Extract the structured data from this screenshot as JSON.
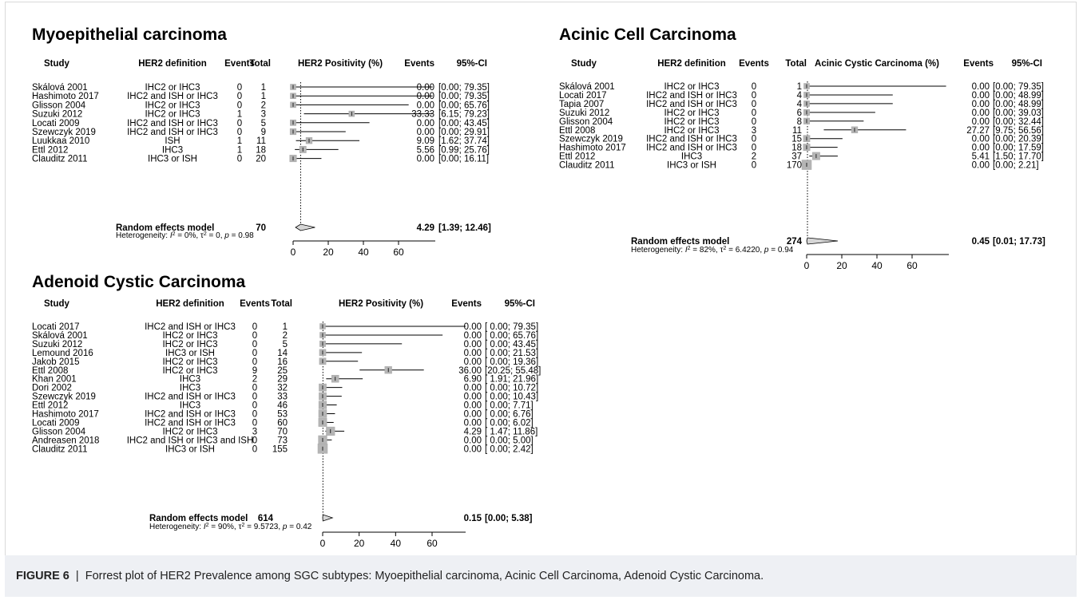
{
  "caption": {
    "label": "FIGURE 6",
    "sep": "|",
    "text": "Forrest plot of HER2 Prevalence among SGC subtypes: Myoepithelial carcinoma, Acinic Cell Carcinoma, Adenoid Cystic Carcinoma."
  },
  "chart_data": [
    {
      "type": "forest",
      "title": "Myoepithelial carcinoma",
      "headers": {
        "study": "Study",
        "definition": "HER2 definition",
        "events": "Events",
        "total": "Total",
        "plot": "HER2 Positivity (%)",
        "events_pct": "Events",
        "ci": "95%-CI"
      },
      "xlim": [
        0,
        60
      ],
      "ticks": [
        "0",
        "20",
        "40",
        "60"
      ],
      "rows": [
        {
          "study": "Skálová 2001",
          "definition": "IHC2 or IHC3",
          "events": "0",
          "total": "1",
          "est": 0.0,
          "lo": 0.0,
          "hi": 79.35,
          "est_text": "0.00",
          "ci_text": "[0.00; 79.35]"
        },
        {
          "study": "Hashimoto 2017",
          "definition": "IHC2 and ISH or IHC3",
          "events": "0",
          "total": "1",
          "est": 0.0,
          "lo": 0.0,
          "hi": 79.35,
          "est_text": "0.00",
          "ci_text": "[0.00; 79.35]"
        },
        {
          "study": "Glisson 2004",
          "definition": "IHC2 or IHC3",
          "events": "0",
          "total": "2",
          "est": 0.0,
          "lo": 0.0,
          "hi": 65.76,
          "est_text": "0.00",
          "ci_text": "[0.00; 65.76]"
        },
        {
          "study": "Suzuki 2012",
          "definition": "IHC2 or IHC3",
          "events": "1",
          "total": "3",
          "est": 33.33,
          "lo": 6.15,
          "hi": 79.23,
          "est_text": "33.33",
          "ci_text": "[6.15; 79.23]"
        },
        {
          "study": "Locati 2009",
          "definition": "IHC2 and ISH or IHC3",
          "events": "0",
          "total": "5",
          "est": 0.0,
          "lo": 0.0,
          "hi": 43.45,
          "est_text": "0.00",
          "ci_text": "[0.00; 43.45]"
        },
        {
          "study": "Szewczyk 2019",
          "definition": "IHC2 and ISH or IHC3",
          "events": "0",
          "total": "9",
          "est": 0.0,
          "lo": 0.0,
          "hi": 29.91,
          "est_text": "0.00",
          "ci_text": "[0.00; 29.91]"
        },
        {
          "study": "Luukkaa 2010",
          "definition": "ISH",
          "events": "1",
          "total": "11",
          "est": 9.09,
          "lo": 1.62,
          "hi": 37.74,
          "est_text": "9.09",
          "ci_text": "[1.62; 37.74]"
        },
        {
          "study": "Ettl 2012",
          "definition": "IHC3",
          "events": "1",
          "total": "18",
          "est": 5.56,
          "lo": 0.99,
          "hi": 25.76,
          "est_text": "5.56",
          "ci_text": "[0.99; 25.76]"
        },
        {
          "study": "Clauditz 2011",
          "definition": "IHC3 or ISH",
          "events": "0",
          "total": "20",
          "est": 0.0,
          "lo": 0.0,
          "hi": 16.11,
          "est_text": "0.00",
          "ci_text": "[0.00; 16.11]"
        }
      ],
      "summary": {
        "label": "Random effects model",
        "total": "70",
        "est": 4.29,
        "lo": 1.39,
        "hi": 12.46,
        "est_text": "4.29",
        "ci_text": "[1.39; 12.46]"
      },
      "heterogeneity": {
        "prefix": "Heterogeneity: ",
        "i2_sym": "I",
        "i2_val": " = 0%, ",
        "tau_sym": "τ",
        "tau_val": " = 0, ",
        "p_sym": "p",
        "p_val": " = 0.98"
      }
    },
    {
      "type": "forest",
      "title": "Acinic Cell Carcinoma",
      "headers": {
        "study": "Study",
        "definition": "HER2 definition",
        "events": "Events",
        "total": "Total",
        "plot": "Acinic Cystic Carcinoma (%)",
        "events_pct": "Events",
        "ci": "95%-CI"
      },
      "xlim": [
        0,
        60
      ],
      "ticks": [
        "0",
        "20",
        "40",
        "60"
      ],
      "rows": [
        {
          "study": "Skálová 2001",
          "definition": "IHC2 or IHC3",
          "events": "0",
          "total": "1",
          "est": 0.0,
          "lo": 0.0,
          "hi": 79.35,
          "est_text": "0.00",
          "ci_text": "[0.00; 79.35]"
        },
        {
          "study": "Locati 2017",
          "definition": "IHC2 and ISH or IHC3",
          "events": "0",
          "total": "4",
          "est": 0.0,
          "lo": 0.0,
          "hi": 48.99,
          "est_text": "0.00",
          "ci_text": "[0.00; 48.99]"
        },
        {
          "study": "Tapia 2007",
          "definition": "IHC2 and ISH or IHC3",
          "events": "0",
          "total": "4",
          "est": 0.0,
          "lo": 0.0,
          "hi": 48.99,
          "est_text": "0.00",
          "ci_text": "[0.00; 48.99]"
        },
        {
          "study": "Suzuki 2012",
          "definition": "IHC2 or IHC3",
          "events": "0",
          "total": "6",
          "est": 0.0,
          "lo": 0.0,
          "hi": 39.03,
          "est_text": "0.00",
          "ci_text": "[0.00; 39.03]"
        },
        {
          "study": "Glisson 2004",
          "definition": "IHC2 or IHC3",
          "events": "0",
          "total": "8",
          "est": 0.0,
          "lo": 0.0,
          "hi": 32.44,
          "est_text": "0.00",
          "ci_text": "[0.00; 32.44]"
        },
        {
          "study": "Ettl 2008",
          "definition": "IHC2 or IHC3",
          "events": "3",
          "total": "11",
          "est": 27.27,
          "lo": 9.75,
          "hi": 56.56,
          "est_text": "27.27",
          "ci_text": "[9.75; 56.56]"
        },
        {
          "study": "Szewczyk 2019",
          "definition": "IHC2 and ISH or IHC3",
          "events": "0",
          "total": "15",
          "est": 0.0,
          "lo": 0.0,
          "hi": 20.39,
          "est_text": "0.00",
          "ci_text": "[0.00; 20.39]"
        },
        {
          "study": "Hashimoto 2017",
          "definition": "IHC2 and ISH or IHC3",
          "events": "0",
          "total": "18",
          "est": 0.0,
          "lo": 0.0,
          "hi": 17.59,
          "est_text": "0.00",
          "ci_text": "[0.00; 17.59]"
        },
        {
          "study": "Ettl 2012",
          "definition": "IHC3",
          "events": "2",
          "total": "37",
          "est": 5.41,
          "lo": 1.5,
          "hi": 17.7,
          "est_text": "5.41",
          "ci_text": "[1.50; 17.70]"
        },
        {
          "study": "Clauditz 2011",
          "definition": "IHC3 or ISH",
          "events": "0",
          "total": "170",
          "est": 0.0,
          "lo": 0.0,
          "hi": 2.21,
          "est_text": "0.00",
          "ci_text": "[0.00; 2.21]"
        }
      ],
      "summary": {
        "label": "Random effects model",
        "total": "274",
        "est": 0.45,
        "lo": 0.01,
        "hi": 17.73,
        "est_text": "0.45",
        "ci_text": "[0.01; 17.73]"
      },
      "heterogeneity": {
        "prefix": "Heterogeneity: ",
        "i2_sym": "I",
        "i2_val": " = 82%, ",
        "tau_sym": "τ",
        "tau_val": " = 6.4220, ",
        "p_sym": "p",
        "p_val": " = 0.94"
      }
    },
    {
      "type": "forest",
      "title": "Adenoid Cystic Carcinoma",
      "headers": {
        "study": "Study",
        "definition": "HER2 definition",
        "events": "Events",
        "total": "Total",
        "plot": "HER2 Positivity (%)",
        "events_pct": "Events",
        "ci": "95%-CI"
      },
      "xlim": [
        0,
        60
      ],
      "ticks": [
        "0",
        "20",
        "40",
        "60"
      ],
      "rows": [
        {
          "study": "Locati 2017",
          "definition": "IHC2 and ISH or IHC3",
          "events": "0",
          "total": "1",
          "est": 0.0,
          "lo": 0.0,
          "hi": 79.35,
          "est_text": "0.00",
          "ci_text": "[ 0.00; 79.35]"
        },
        {
          "study": "Skálová 2001",
          "definition": "IHC2 or IHC3",
          "events": "0",
          "total": "2",
          "est": 0.0,
          "lo": 0.0,
          "hi": 65.76,
          "est_text": "0.00",
          "ci_text": "[ 0.00; 65.76]"
        },
        {
          "study": "Suzuki 2012",
          "definition": "IHC2 or IHC3",
          "events": "0",
          "total": "5",
          "est": 0.0,
          "lo": 0.0,
          "hi": 43.45,
          "est_text": "0.00",
          "ci_text": "[ 0.00; 43.45]"
        },
        {
          "study": "Lemound 2016",
          "definition": "IHC3 or ISH",
          "events": "0",
          "total": "14",
          "est": 0.0,
          "lo": 0.0,
          "hi": 21.53,
          "est_text": "0.00",
          "ci_text": "[ 0.00; 21.53]"
        },
        {
          "study": "Jakob 2015",
          "definition": "IHC2 or IHC3",
          "events": "0",
          "total": "16",
          "est": 0.0,
          "lo": 0.0,
          "hi": 19.36,
          "est_text": "0.00",
          "ci_text": "[ 0.00; 19.36]"
        },
        {
          "study": "Ettl 2008",
          "definition": "IHC2 or IHC3",
          "events": "9",
          "total": "25",
          "est": 36.0,
          "lo": 20.25,
          "hi": 55.48,
          "est_text": "36.00",
          "ci_text": "[20.25; 55.48]"
        },
        {
          "study": "Khan 2001",
          "definition": "IHC3",
          "events": "2",
          "total": "29",
          "est": 6.9,
          "lo": 1.91,
          "hi": 21.96,
          "est_text": "6.90",
          "ci_text": "[ 1.91; 21.96]"
        },
        {
          "study": "Dori 2002",
          "definition": "IHC3",
          "events": "0",
          "total": "32",
          "est": 0.0,
          "lo": 0.0,
          "hi": 10.72,
          "est_text": "0.00",
          "ci_text": "[ 0.00; 10.72]"
        },
        {
          "study": "Szewczyk 2019",
          "definition": "IHC2 and ISH or IHC3",
          "events": "0",
          "total": "33",
          "est": 0.0,
          "lo": 0.0,
          "hi": 10.43,
          "est_text": "0.00",
          "ci_text": "[ 0.00; 10.43]"
        },
        {
          "study": "Ettl 2012",
          "definition": "IHC3",
          "events": "0",
          "total": "46",
          "est": 0.0,
          "lo": 0.0,
          "hi": 7.71,
          "est_text": "0.00",
          "ci_text": "[ 0.00; 7.71]"
        },
        {
          "study": "Hashimoto 2017",
          "definition": "IHC2 and ISH or IHC3",
          "events": "0",
          "total": "53",
          "est": 0.0,
          "lo": 0.0,
          "hi": 6.76,
          "est_text": "0.00",
          "ci_text": "[ 0.00; 6.76]"
        },
        {
          "study": "Locati 2009",
          "definition": "IHC2 and ISH or IHC3",
          "events": "0",
          "total": "60",
          "est": 0.0,
          "lo": 0.0,
          "hi": 6.02,
          "est_text": "0.00",
          "ci_text": "[ 0.00; 6.02]"
        },
        {
          "study": "Glisson 2004",
          "definition": "IHC2 or IHC3",
          "events": "3",
          "total": "70",
          "est": 4.29,
          "lo": 1.47,
          "hi": 11.86,
          "est_text": "4.29",
          "ci_text": "[ 1.47; 11.86]"
        },
        {
          "study": "Andreasen 2018",
          "definition": "IHC2 and ISH or IHC3 and ISH",
          "events": "0",
          "total": "73",
          "est": 0.0,
          "lo": 0.0,
          "hi": 5.0,
          "est_text": "0.00",
          "ci_text": "[ 0.00; 5.00]"
        },
        {
          "study": "Clauditz 2011",
          "definition": "IHC3 or ISH",
          "events": "0",
          "total": "155",
          "est": 0.0,
          "lo": 0.0,
          "hi": 2.42,
          "est_text": "0.00",
          "ci_text": "[ 0.00; 2.42]"
        }
      ],
      "summary": {
        "label": "Random effects model",
        "total": "614",
        "est": 0.15,
        "lo": 0.0,
        "hi": 5.38,
        "est_text": "0.15",
        "ci_text": "[0.00; 5.38]"
      },
      "heterogeneity": {
        "prefix": "Heterogeneity: ",
        "i2_sym": "I",
        "i2_val": " = 90%, ",
        "tau_sym": "τ",
        "tau_val": " = 9.5723, ",
        "p_sym": "p",
        "p_val": " = 0.42"
      }
    }
  ]
}
